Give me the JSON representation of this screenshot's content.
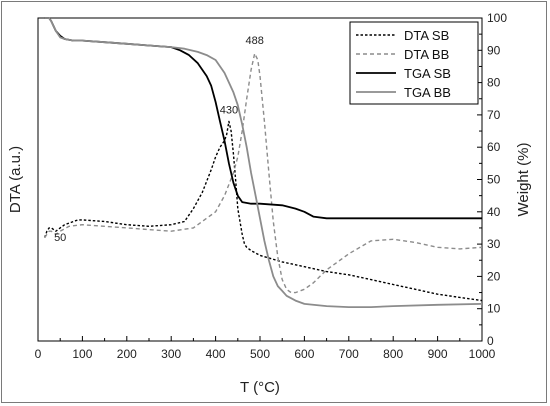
{
  "chart_data": {
    "type": "line",
    "xlabel": "T (°C)",
    "ylabel_left": "DTA (a.u.)",
    "ylabel_right": "Weight (%)",
    "xlim": [
      0,
      1000
    ],
    "ylim_right": [
      0,
      100
    ],
    "x_ticks": [
      0,
      100,
      200,
      300,
      400,
      500,
      600,
      700,
      800,
      900,
      1000
    ],
    "y_right_ticks": [
      0,
      10,
      20,
      30,
      40,
      50,
      60,
      70,
      80,
      90,
      100
    ],
    "grid": false,
    "legend_position": "top-right",
    "annotations": [
      {
        "text": "50",
        "x": 50,
        "y": 31
      },
      {
        "text": "430",
        "x": 430,
        "y": 70.5
      },
      {
        "text": "488",
        "x": 488,
        "y": 92
      }
    ],
    "series": [
      {
        "name": "DTA SB",
        "style": "dotted",
        "color": "#000000",
        "x": [
          15,
          20,
          25,
          30,
          40,
          50,
          60,
          70,
          80,
          90,
          100,
          150,
          200,
          250,
          300,
          330,
          350,
          370,
          390,
          400,
          410,
          420,
          425,
          430,
          435,
          440,
          445,
          450,
          455,
          460,
          465,
          470,
          480,
          500,
          550,
          600,
          650,
          700,
          750,
          800,
          850,
          900,
          950,
          1000
        ],
        "y": [
          32,
          34,
          35,
          35,
          34,
          35,
          36,
          36.5,
          37,
          37.5,
          37.5,
          37,
          36,
          35.5,
          36,
          37,
          41,
          46,
          53,
          57,
          60,
          62,
          64,
          68,
          65,
          58,
          50,
          41,
          37,
          33,
          30,
          29,
          28,
          26.5,
          24.5,
          23,
          21.5,
          20.5,
          19,
          17.5,
          16,
          14.5,
          13.5,
          12.5
        ]
      },
      {
        "name": "DTA BB",
        "style": "dashed",
        "color": "#8c8c8c",
        "x": [
          15,
          20,
          25,
          30,
          40,
          50,
          70,
          100,
          150,
          200,
          250,
          300,
          350,
          400,
          420,
          440,
          450,
          460,
          470,
          480,
          488,
          495,
          500,
          510,
          520,
          530,
          540,
          550,
          560,
          570,
          580,
          600,
          620,
          650,
          700,
          750,
          800,
          850,
          900,
          950,
          1000
        ],
        "y": [
          32,
          33,
          34,
          34,
          33,
          34,
          35.5,
          36,
          35.5,
          35,
          34.5,
          34,
          35,
          40,
          45,
          52,
          57,
          65,
          75,
          84,
          89,
          87,
          82,
          68,
          52,
          37,
          26,
          19,
          16,
          15,
          15,
          16,
          18,
          22,
          27,
          31,
          31.5,
          30.5,
          29,
          28.5,
          29
        ]
      },
      {
        "name": "TGA SB",
        "style": "solid",
        "color": "#000000",
        "x": [
          15,
          25,
          30,
          40,
          50,
          60,
          80,
          100,
          150,
          200,
          250,
          300,
          320,
          340,
          360,
          380,
          390,
          400,
          410,
          420,
          430,
          440,
          450,
          460,
          480,
          500,
          550,
          580,
          600,
          620,
          650,
          700,
          800,
          900,
          1000
        ],
        "y": [
          100,
          100,
          99,
          96,
          94.5,
          93.5,
          93,
          93,
          92.5,
          92,
          91.5,
          91,
          90,
          88.5,
          86,
          82,
          79,
          74,
          68,
          62,
          55,
          49,
          45,
          43,
          42.5,
          42.5,
          42,
          41,
          40,
          38.5,
          38,
          38,
          38,
          38,
          38
        ]
      },
      {
        "name": "TGA BB",
        "style": "solid",
        "color": "#8c8c8c",
        "x": [
          15,
          25,
          30,
          40,
          50,
          60,
          80,
          100,
          150,
          200,
          250,
          300,
          330,
          360,
          380,
          400,
          420,
          440,
          450,
          460,
          470,
          480,
          490,
          500,
          510,
          520,
          530,
          540,
          550,
          560,
          580,
          600,
          650,
          700,
          750,
          800,
          900,
          1000
        ],
        "y": [
          100,
          100,
          99,
          96,
          94,
          93.5,
          93,
          93,
          92.5,
          92,
          91.5,
          91,
          90.5,
          89.5,
          88.5,
          87,
          83,
          77,
          73,
          67,
          60,
          52,
          45,
          38,
          31,
          25,
          20,
          17,
          15.5,
          14,
          12.5,
          11.5,
          10.8,
          10.5,
          10.5,
          10.8,
          11.2,
          11.5
        ]
      }
    ]
  }
}
